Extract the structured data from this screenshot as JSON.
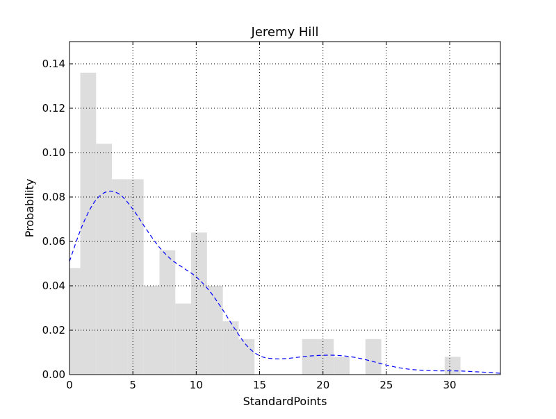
{
  "chart_data": {
    "type": "bar",
    "title": "Jeremy Hill",
    "xlabel": "StandardPoints",
    "ylabel": "Probability",
    "xlim": [
      0,
      34
    ],
    "ylim": [
      0,
      0.15
    ],
    "xticks": [
      0,
      5,
      10,
      15,
      20,
      25,
      30
    ],
    "yticks": [
      0.0,
      0.02,
      0.04,
      0.06,
      0.08,
      0.1,
      0.12,
      0.14
    ],
    "xtick_labels": [
      "0",
      "5",
      "10",
      "15",
      "20",
      "25",
      "30"
    ],
    "ytick_labels": [
      "0.00",
      "0.02",
      "0.04",
      "0.06",
      "0.08",
      "0.10",
      "0.12",
      "0.14"
    ],
    "grid": true,
    "histogram": {
      "bin_width": 1.25,
      "bins": [
        {
          "x0": -0.4,
          "x1": 0.85,
          "value": 0.048
        },
        {
          "x0": 0.85,
          "x1": 2.1,
          "value": 0.136
        },
        {
          "x0": 2.1,
          "x1": 3.35,
          "value": 0.104
        },
        {
          "x0": 3.35,
          "x1": 4.6,
          "value": 0.088
        },
        {
          "x0": 4.6,
          "x1": 5.85,
          "value": 0.088
        },
        {
          "x0": 5.85,
          "x1": 7.1,
          "value": 0.04
        },
        {
          "x0": 7.1,
          "x1": 8.35,
          "value": 0.056
        },
        {
          "x0": 8.35,
          "x1": 9.6,
          "value": 0.032
        },
        {
          "x0": 9.6,
          "x1": 10.85,
          "value": 0.064
        },
        {
          "x0": 10.85,
          "x1": 12.1,
          "value": 0.04
        },
        {
          "x0": 12.1,
          "x1": 13.35,
          "value": 0.024
        },
        {
          "x0": 13.35,
          "x1": 14.6,
          "value": 0.016
        },
        {
          "x0": 18.35,
          "x1": 19.6,
          "value": 0.016
        },
        {
          "x0": 19.6,
          "x1": 20.85,
          "value": 0.016
        },
        {
          "x0": 20.85,
          "x1": 22.1,
          "value": 0.008
        },
        {
          "x0": 23.35,
          "x1": 24.6,
          "value": 0.016
        },
        {
          "x0": 29.6,
          "x1": 30.85,
          "value": 0.008
        }
      ]
    },
    "density": {
      "x": [
        0,
        1,
        2,
        3,
        4,
        5,
        6,
        7,
        8,
        9,
        10,
        11,
        12,
        13,
        14,
        15,
        16,
        17,
        18,
        19,
        20,
        21,
        22,
        23,
        24,
        25,
        26,
        27,
        28,
        29,
        30,
        31,
        32,
        33,
        34
      ],
      "y": [
        0.051,
        0.067,
        0.078,
        0.0825,
        0.081,
        0.0745,
        0.066,
        0.058,
        0.052,
        0.048,
        0.044,
        0.038,
        0.03,
        0.021,
        0.013,
        0.0085,
        0.0072,
        0.0072,
        0.0078,
        0.0084,
        0.0087,
        0.0087,
        0.0082,
        0.0072,
        0.0058,
        0.0043,
        0.0031,
        0.0023,
        0.0019,
        0.0017,
        0.0017,
        0.0016,
        0.0013,
        0.001,
        0.0006
      ]
    },
    "colors": {
      "bars": "#dddddd",
      "density": "#0000ff",
      "axes": "#000000",
      "grid": "#000000"
    }
  }
}
